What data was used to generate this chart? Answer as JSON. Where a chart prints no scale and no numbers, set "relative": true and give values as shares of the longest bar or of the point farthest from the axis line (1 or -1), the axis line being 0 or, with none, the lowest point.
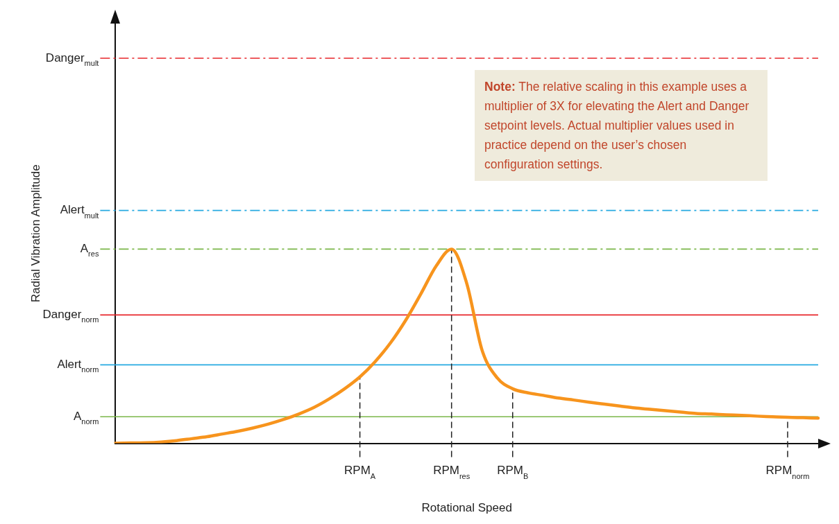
{
  "chart_data": {
    "type": "line",
    "relative": true,
    "xlabel": "Rotational Speed",
    "ylabel": "Radial Vibration Amplitude",
    "color": "#f7941d",
    "marker": "none",
    "line_style": "solid",
    "legend": false,
    "grid": false,
    "categories": [
      null,
      null,
      null,
      null,
      null,
      null,
      null,
      null,
      null,
      null,
      null,
      null,
      null,
      null,
      null,
      null,
      "RPM$_{A}$",
      null,
      null,
      null,
      null,
      null,
      "RPM$_{res}$",
      null,
      null,
      null,
      "RPM$_{B}$",
      null,
      null,
      null,
      null,
      null,
      null,
      null,
      null,
      null,
      null,
      null,
      null,
      null,
      null,
      null,
      null,
      null,
      "RPM$_{norm}$",
      null,
      null
    ],
    "values": [
      0,
      0.002,
      0.003,
      0.007,
      0.014,
      0.024,
      0.034,
      0.048,
      0.062,
      0.079,
      0.099,
      0.123,
      0.151,
      0.185,
      0.229,
      0.281,
      0.342,
      0.421,
      0.517,
      0.634,
      0.771,
      0.914,
      1,
      0.822,
      0.479,
      0.336,
      0.281,
      0.26,
      0.247,
      0.233,
      0.223,
      0.212,
      0.202,
      0.192,
      0.182,
      0.175,
      0.168,
      0.161,
      0.154,
      0.151,
      0.147,
      0.144,
      0.14,
      0.137,
      0.134,
      0.132,
      0.13
    ],
    "ref_lines": [
      {
        "axis": "y",
        "value": 1.983,
        "label": "Danger$_{mult}$",
        "color": "#e8262a",
        "line_style": "dashed"
      },
      {
        "axis": "y",
        "value": 1.199,
        "label": "Alert$_{mult}$",
        "color": "#27aae1",
        "line_style": "dashed"
      },
      {
        "axis": "y",
        "value": 1.0,
        "label": "A$_{res}$",
        "color": "#7ab648",
        "line_style": "dashed"
      },
      {
        "axis": "y",
        "value": 0.661,
        "label": "Danger$_{norm}$",
        "color": "#e8262a",
        "line_style": "solid"
      },
      {
        "axis": "y",
        "value": 0.404,
        "label": "Alert$_{norm}$",
        "color": "#27aae1",
        "line_style": "solid"
      },
      {
        "axis": "y",
        "value": 0.137,
        "label": "A$_{norm}$",
        "color": "#7ab648",
        "line_style": "solid"
      },
      {
        "axis": "x",
        "value": "RPM$_{A}$",
        "color": "#222222",
        "line_style": "dashed"
      },
      {
        "axis": "x",
        "value": "RPM$_{res}$",
        "color": "#222222",
        "line_style": "dashed"
      },
      {
        "axis": "x",
        "value": "RPM$_{B}$",
        "color": "#222222",
        "line_style": "dashed"
      },
      {
        "axis": "x",
        "value": "RPM$_{norm}$",
        "color": "#222222",
        "line_style": "dashed"
      }
    ],
    "annotations": [
      "Note: The relative scaling in this example uses a multiplier of 3X for elevating the Alert and Danger setpoint levels.  Actual multiplier values used in practice depend on the user’s chosen configuration settings."
    ]
  }
}
